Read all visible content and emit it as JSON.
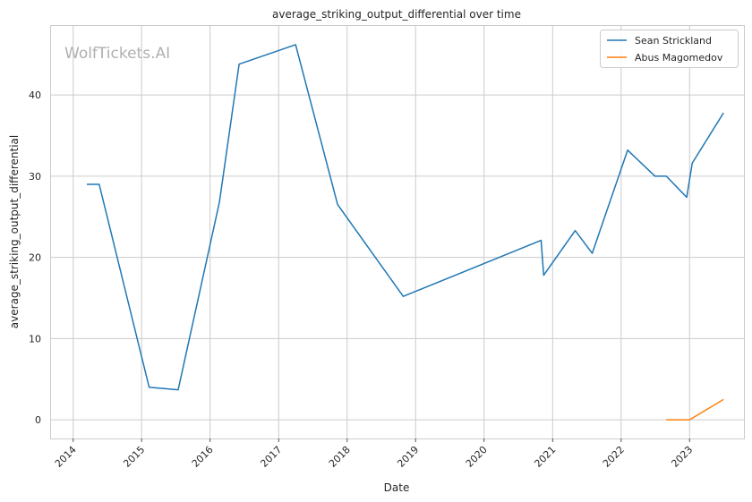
{
  "chart_data": {
    "type": "line",
    "title": "average_striking_output_differential over time",
    "xlabel": "Date",
    "ylabel": "average_striking_output_differential",
    "watermark": "WolfTickets.AI",
    "grid": true,
    "legend_position": "top-right",
    "x_ticks": [
      "2014",
      "2015",
      "2016",
      "2017",
      "2018",
      "2019",
      "2020",
      "2021",
      "2022",
      "2023"
    ],
    "y_ticks": [
      0,
      10,
      20,
      30,
      40
    ],
    "xlim": [
      "2013-09-05",
      "2023-10-18"
    ],
    "ylim": [
      -2.3,
      48.5
    ],
    "series": [
      {
        "name": "Sean Strickland",
        "color": "#1f77b4",
        "points": [
          {
            "date": "2014-03-15",
            "value": 29.0
          },
          {
            "date": "2014-05-20",
            "value": 29.0
          },
          {
            "date": "2015-02-10",
            "value": 4.0
          },
          {
            "date": "2015-07-15",
            "value": 3.7
          },
          {
            "date": "2016-02-20",
            "value": 26.8
          },
          {
            "date": "2016-06-04",
            "value": 43.8
          },
          {
            "date": "2017-04-01",
            "value": 46.2
          },
          {
            "date": "2017-11-11",
            "value": 26.5
          },
          {
            "date": "2018-10-27",
            "value": 15.2
          },
          {
            "date": "2020-10-31",
            "value": 22.1
          },
          {
            "date": "2020-11-14",
            "value": 17.8
          },
          {
            "date": "2021-05-01",
            "value": 23.3
          },
          {
            "date": "2021-07-31",
            "value": 20.5
          },
          {
            "date": "2022-02-05",
            "value": 33.2
          },
          {
            "date": "2022-07-01",
            "value": 30.0
          },
          {
            "date": "2022-08-30",
            "value": 30.0
          },
          {
            "date": "2022-12-17",
            "value": 27.4
          },
          {
            "date": "2023-01-15",
            "value": 31.6
          },
          {
            "date": "2023-07-01",
            "value": 37.8
          }
        ]
      },
      {
        "name": "Abus Magomedov",
        "color": "#ff7f0e",
        "points": [
          {
            "date": "2022-08-30",
            "value": 0.0
          },
          {
            "date": "2023-01-01",
            "value": 0.0
          },
          {
            "date": "2023-07-01",
            "value": 2.5
          }
        ]
      }
    ]
  }
}
